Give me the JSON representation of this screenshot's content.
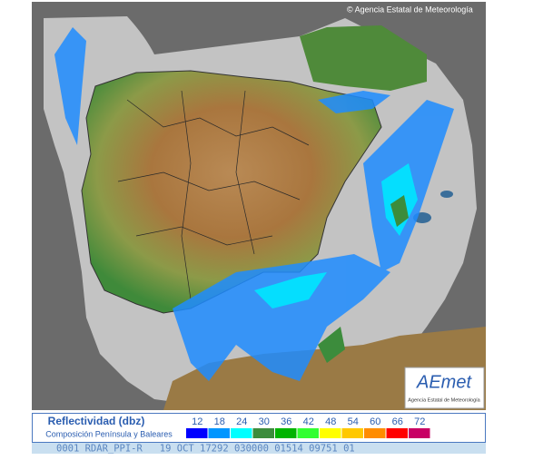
{
  "copyright": "© Agencia Estatal de Meteorología",
  "logo": {
    "name": "AEmet",
    "subtitle": "Agencia Estatal de Meteorología"
  },
  "legend": {
    "title": "Reflectividad (dbz)",
    "subtitle": "Composición Península y Baleares",
    "items": [
      {
        "label": "12",
        "color": "#0000ff"
      },
      {
        "label": "18",
        "color": "#0096ff"
      },
      {
        "label": "24",
        "color": "#00ffff"
      },
      {
        "label": "30",
        "color": "#3c8c3c"
      },
      {
        "label": "36",
        "color": "#00b400"
      },
      {
        "label": "42",
        "color": "#32ff32"
      },
      {
        "label": "48",
        "color": "#ffff00"
      },
      {
        "label": "54",
        "color": "#ffc800"
      },
      {
        "label": "60",
        "color": "#ff8c00"
      },
      {
        "label": "66",
        "color": "#ff0000"
      },
      {
        "label": "72",
        "color": "#c80064"
      }
    ]
  },
  "status": "0001 RDAR_PPI-R   19 OCT 17292 030000 01514 09751 01"
}
